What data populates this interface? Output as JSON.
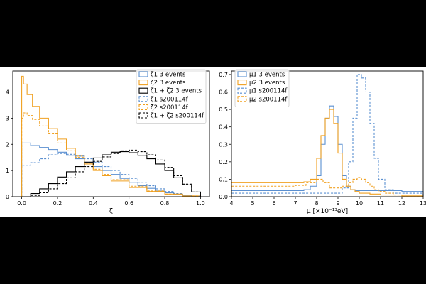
{
  "chart_data": [
    {
      "type": "histogram",
      "xlabel": "ζ",
      "xlim": [
        -0.05,
        1.05
      ],
      "ylim": [
        0,
        4.8
      ],
      "xticks": [
        "0.0",
        "0.2",
        "0.4",
        "0.6",
        "0.8",
        "1.0"
      ],
      "yticks": [
        "0",
        "1",
        "2",
        "3",
        "4"
      ],
      "grid": false,
      "legend_position": "top-right",
      "series": [
        {
          "name": "ζ1 3 events",
          "color": "#5a8fd0",
          "dash": "solid",
          "x": [
            0.0,
            0.05,
            0.1,
            0.15,
            0.2,
            0.25,
            0.3,
            0.35,
            0.4,
            0.45,
            0.5,
            0.55,
            0.6,
            0.65,
            0.7,
            0.75,
            0.8,
            0.85,
            0.9,
            0.95,
            1.0
          ],
          "y": [
            2.05,
            1.95,
            1.88,
            1.8,
            1.7,
            1.58,
            1.45,
            1.3,
            1.15,
            1.0,
            0.85,
            0.7,
            0.55,
            0.42,
            0.32,
            0.22,
            0.15,
            0.09,
            0.05,
            0.02,
            0.0
          ]
        },
        {
          "name": "ζ2 3 events",
          "color": "#f0a020",
          "dash": "solid",
          "x": [
            0.0,
            0.01,
            0.03,
            0.06,
            0.1,
            0.15,
            0.2,
            0.25,
            0.3,
            0.35,
            0.4,
            0.45,
            0.5,
            0.6,
            0.7,
            0.8,
            0.9,
            1.0
          ],
          "y": [
            4.6,
            4.3,
            3.9,
            3.45,
            3.0,
            2.6,
            2.2,
            1.85,
            1.55,
            1.25,
            1.0,
            0.8,
            0.6,
            0.35,
            0.2,
            0.1,
            0.03,
            0.0
          ]
        },
        {
          "name": "ζ1 + ζ2 3 events",
          "color": "#000000",
          "dash": "solid",
          "x": [
            0.0,
            0.05,
            0.1,
            0.15,
            0.2,
            0.25,
            0.3,
            0.35,
            0.4,
            0.45,
            0.5,
            0.55,
            0.6,
            0.65,
            0.7,
            0.75,
            0.8,
            0.85,
            0.9,
            0.95,
            1.0
          ],
          "y": [
            0.0,
            0.12,
            0.3,
            0.5,
            0.75,
            0.95,
            1.15,
            1.32,
            1.48,
            1.6,
            1.7,
            1.72,
            1.68,
            1.58,
            1.45,
            1.25,
            1.0,
            0.72,
            0.45,
            0.18,
            0.0
          ]
        },
        {
          "name": "ζ1 s200114f",
          "color": "#5a8fd0",
          "dash": "dashed",
          "x": [
            0.0,
            0.05,
            0.1,
            0.15,
            0.2,
            0.25,
            0.3,
            0.35,
            0.4,
            0.45,
            0.5,
            0.55,
            0.6,
            0.65,
            0.7,
            0.75,
            0.8,
            0.85,
            0.9,
            0.95,
            1.0
          ],
          "y": [
            1.2,
            1.3,
            1.45,
            1.6,
            1.65,
            1.62,
            1.55,
            1.45,
            1.32,
            1.15,
            1.0,
            0.85,
            0.7,
            0.55,
            0.42,
            0.3,
            0.2,
            0.12,
            0.06,
            0.02,
            0.0
          ]
        },
        {
          "name": "ζ2 s200114f",
          "color": "#f0a020",
          "dash": "dashed",
          "x": [
            0.0,
            0.01,
            0.03,
            0.06,
            0.1,
            0.15,
            0.2,
            0.25,
            0.3,
            0.35,
            0.4,
            0.45,
            0.5,
            0.6,
            0.7,
            0.8,
            0.9,
            1.0
          ],
          "y": [
            3.0,
            3.2,
            3.1,
            2.95,
            2.7,
            2.4,
            2.05,
            1.75,
            1.5,
            1.25,
            1.05,
            0.85,
            0.65,
            0.4,
            0.22,
            0.1,
            0.03,
            0.0
          ]
        },
        {
          "name": "ζ1 + ζ2 s200114f",
          "color": "#000000",
          "dash": "dashed",
          "x": [
            0.0,
            0.05,
            0.1,
            0.15,
            0.2,
            0.25,
            0.3,
            0.35,
            0.4,
            0.45,
            0.5,
            0.55,
            0.6,
            0.65,
            0.7,
            0.75,
            0.8,
            0.85,
            0.9,
            0.95,
            1.0
          ],
          "y": [
            0.0,
            0.05,
            0.15,
            0.3,
            0.5,
            0.72,
            0.95,
            1.15,
            1.35,
            1.52,
            1.65,
            1.75,
            1.78,
            1.72,
            1.6,
            1.4,
            1.12,
            0.8,
            0.48,
            0.18,
            0.0
          ]
        }
      ]
    },
    {
      "type": "histogram",
      "xlabel": "μ [×10⁻¹³eV]",
      "xlim": [
        4,
        13
      ],
      "ylim": [
        0,
        0.72
      ],
      "xticks": [
        "4",
        "5",
        "6",
        "7",
        "8",
        "9",
        "10",
        "11",
        "12",
        "13"
      ],
      "yticks": [
        "0.0",
        "0.1",
        "0.2",
        "0.3",
        "0.4",
        "0.5",
        "0.6",
        "0.7"
      ],
      "grid": false,
      "legend_position": "top-left",
      "series": [
        {
          "name": "μ1 3 events",
          "color": "#5a8fd0",
          "dash": "solid",
          "x": [
            4,
            5,
            6,
            7,
            7.4,
            7.7,
            8.0,
            8.2,
            8.4,
            8.6,
            8.8,
            9.0,
            9.2,
            9.4,
            9.6,
            9.8,
            10,
            10.5,
            11,
            11.5,
            12,
            12.5,
            13
          ],
          "y": [
            0.035,
            0.035,
            0.035,
            0.035,
            0.04,
            0.06,
            0.12,
            0.3,
            0.45,
            0.52,
            0.46,
            0.3,
            0.12,
            0.06,
            0.04,
            0.035,
            0.035,
            0.035,
            0.035,
            0.035,
            0.03,
            0.03,
            0.03
          ]
        },
        {
          "name": "μ2 3 events",
          "color": "#f0a020",
          "dash": "solid",
          "x": [
            4,
            5,
            6,
            7,
            7.4,
            7.7,
            8.0,
            8.2,
            8.4,
            8.6,
            8.8,
            9.0,
            9.2,
            9.4,
            9.6,
            9.8,
            10,
            10.5,
            11,
            11.5,
            12,
            12.5,
            13
          ],
          "y": [
            0.08,
            0.08,
            0.08,
            0.08,
            0.085,
            0.1,
            0.22,
            0.35,
            0.45,
            0.5,
            0.42,
            0.25,
            0.1,
            0.06,
            0.04,
            0.03,
            0.02,
            0.015,
            0.01,
            0.01,
            0.005,
            0.005,
            0.0
          ]
        },
        {
          "name": "μ1 s200114f",
          "color": "#5a8fd0",
          "dash": "dashed",
          "x": [
            4,
            5,
            6,
            7,
            7.5,
            8,
            8.3,
            8.6,
            8.9,
            9.2,
            9.5,
            9.7,
            9.9,
            10.1,
            10.3,
            10.5,
            10.7,
            10.9,
            11.2,
            11.6,
            12,
            12.5,
            13
          ],
          "y": [
            0.02,
            0.02,
            0.02,
            0.02,
            0.02,
            0.02,
            0.02,
            0.02,
            0.02,
            0.05,
            0.2,
            0.45,
            0.7,
            0.68,
            0.6,
            0.42,
            0.22,
            0.1,
            0.04,
            0.02,
            0.02,
            0.02,
            0.02
          ]
        },
        {
          "name": "μ2 s200114f",
          "color": "#f0a020",
          "dash": "dashed",
          "x": [
            4,
            5,
            6,
            7,
            7.5,
            8,
            8.3,
            8.6,
            8.9,
            9.2,
            9.5,
            9.7,
            9.9,
            10.1,
            10.3,
            10.5,
            10.7,
            10.9,
            11.2,
            11.6,
            12,
            12.5,
            13
          ],
          "y": [
            0.06,
            0.06,
            0.06,
            0.065,
            0.08,
            0.1,
            0.08,
            0.05,
            0.05,
            0.06,
            0.08,
            0.1,
            0.11,
            0.1,
            0.08,
            0.06,
            0.04,
            0.03,
            0.02,
            0.01,
            0.0,
            0.0,
            0.0
          ]
        }
      ]
    }
  ]
}
